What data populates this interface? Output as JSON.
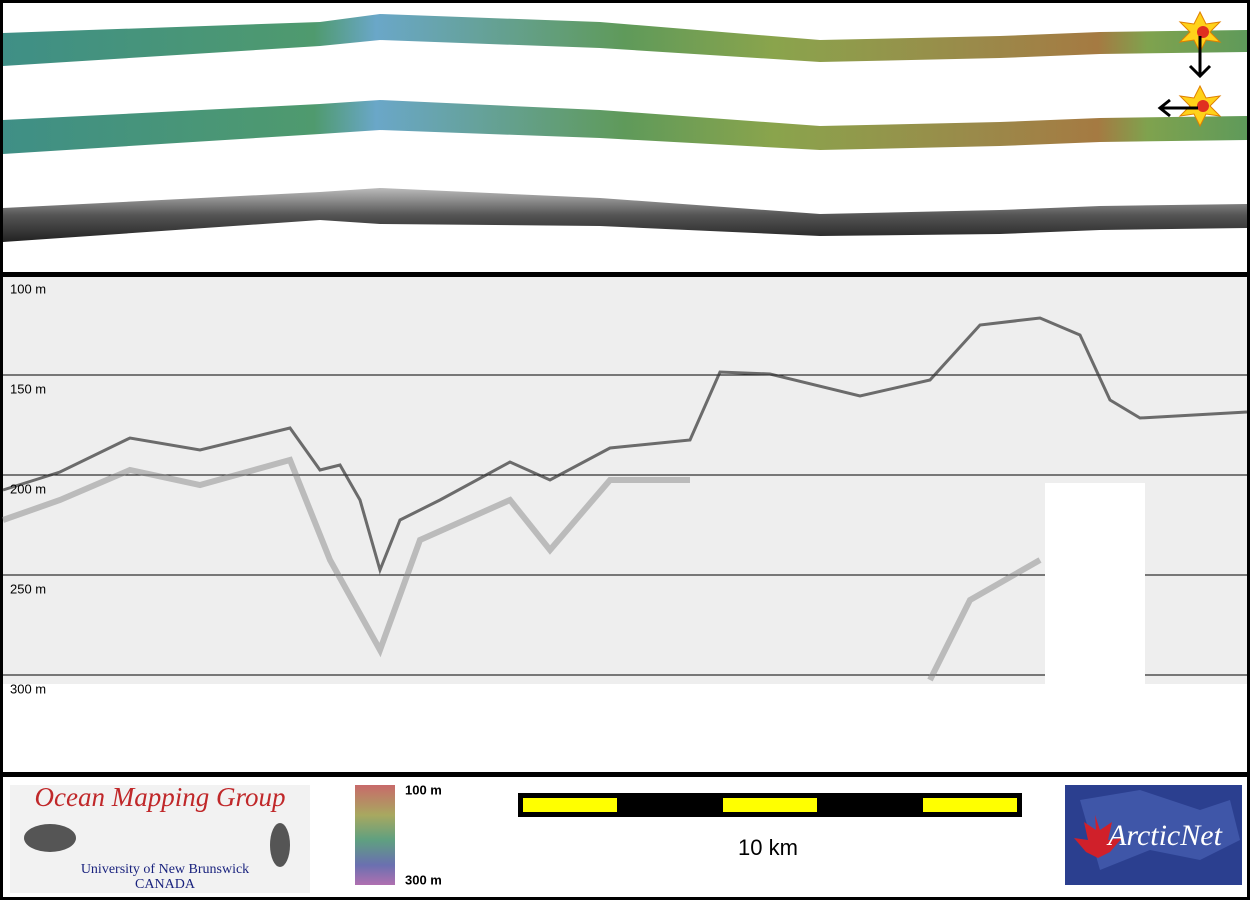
{
  "profile": {
    "depth_labels": [
      "100 m",
      "150 m",
      "200 m",
      "250 m",
      "300 m"
    ]
  },
  "legend": {
    "colorbar_top": "100 m",
    "colorbar_bottom": "300 m",
    "scale_bar": "10 km"
  },
  "logos": {
    "omg_title": "Ocean Mapping Group",
    "omg_university": "University of New Brunswick",
    "omg_country": "CANADA",
    "arcticnet": "ArcticNet"
  }
}
